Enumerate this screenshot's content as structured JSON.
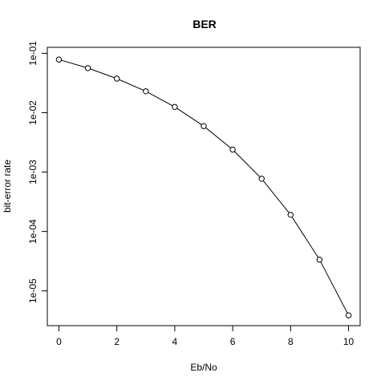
{
  "chart_data": {
    "type": "line",
    "title": "BER",
    "xlabel": "Eb/No",
    "ylabel": "bit-error rate",
    "y_scale": "log",
    "xlim": [
      -0.4,
      10.4
    ],
    "ylim": [
      2.6e-06,
      0.126
    ],
    "x_ticks": [
      0,
      2,
      4,
      6,
      8,
      10
    ],
    "x_tick_labels": [
      "0",
      "2",
      "4",
      "6",
      "8",
      "10"
    ],
    "y_ticks": [
      1e-05,
      0.0001,
      0.001,
      0.01,
      0.1
    ],
    "y_tick_labels": [
      "1e-05",
      "1e-04",
      "1e-03",
      "1e-02",
      "1e-01"
    ],
    "grid": false,
    "legend": "none",
    "marker": "open-circle",
    "line_color": "#000000",
    "x": [
      0,
      1,
      2,
      3,
      4,
      5,
      6,
      7,
      8,
      9,
      10
    ],
    "y": [
      0.0786,
      0.0563,
      0.0375,
      0.0229,
      0.0125,
      0.00595,
      0.00239,
      0.000773,
      0.000191,
      3.36e-05,
      3.87e-06
    ]
  }
}
